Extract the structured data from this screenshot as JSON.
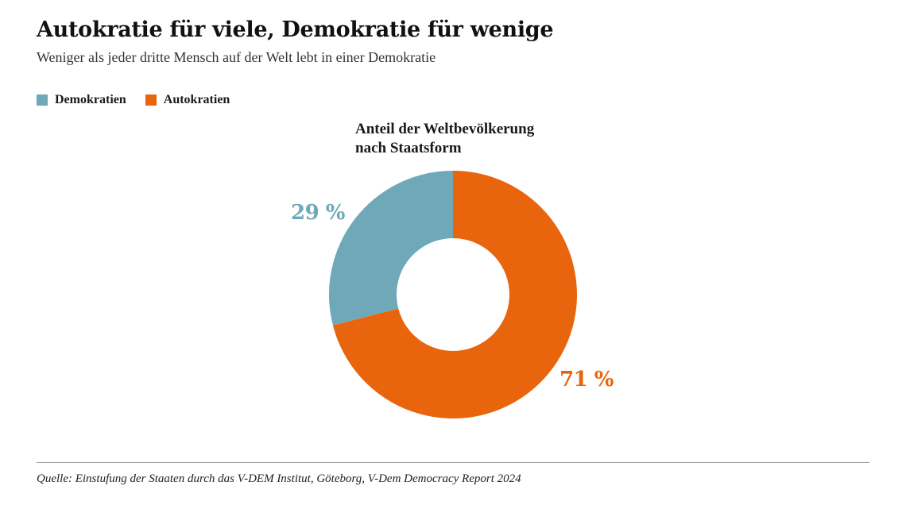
{
  "header": {
    "title": "Autokratie für viele, Demokratie für wenige",
    "subtitle": "Weniger als jeder dritte Mensch auf der Welt lebt in einer Demokratie"
  },
  "colors": {
    "demokratien": "#6fa8b8",
    "autokratien": "#e8650d"
  },
  "chart_data": {
    "type": "pie",
    "variant": "donut",
    "title": "Anteil der Weltbevölkerung nach Staatsform",
    "title_lines": [
      "Anteil der Weltbevölkerung",
      "nach Staatsform"
    ],
    "legend_position": "top-left",
    "slices": [
      {
        "name": "Demokratien",
        "value": 29,
        "label": "29 %",
        "color": "#6fa8b8"
      },
      {
        "name": "Autokratien",
        "value": 71,
        "label": "71 %",
        "color": "#e8650d"
      }
    ]
  },
  "footer": {
    "source": "Quelle: Einstufung der Staaten durch das V-DEM Institut, Göteborg, V-Dem Democracy Report 2024"
  }
}
